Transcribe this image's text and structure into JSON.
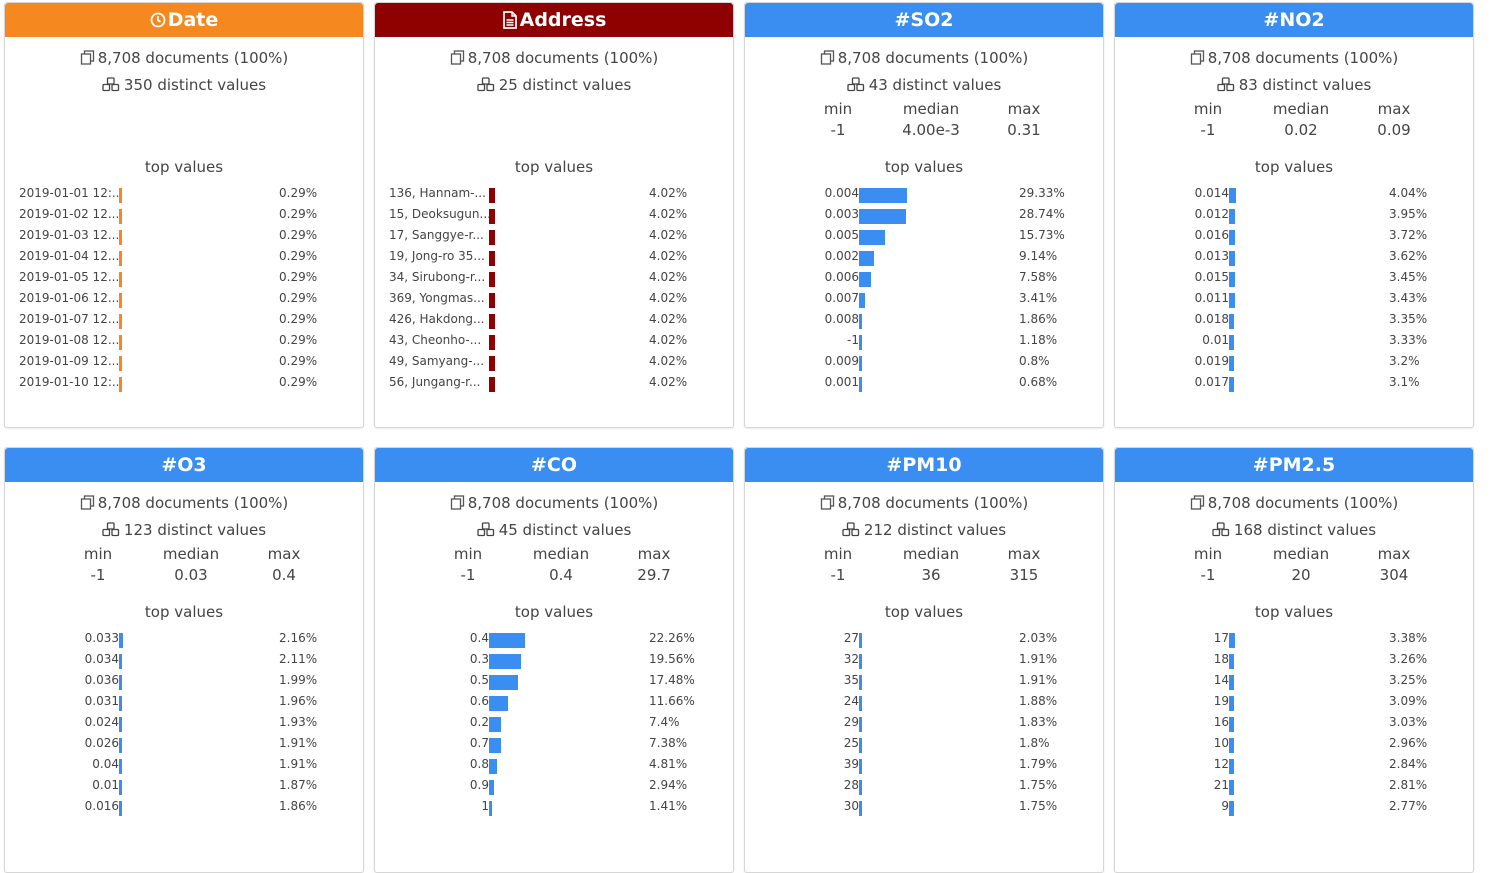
{
  "colors": {
    "date": "#f5891f",
    "address": "#8f0000",
    "numeric": "#3a8ef2"
  },
  "cards": [
    {
      "title": "Date",
      "icon": "clock-icon",
      "kind": "date",
      "documents": "8,708 documents (100%)",
      "distinct": "350 distinct values",
      "top_values_label": "top values",
      "top_values": [
        {
          "name": "2019-01-01 12:...",
          "pct": "0.29%",
          "frac": 0.29
        },
        {
          "name": "2019-01-02 12...",
          "pct": "0.29%",
          "frac": 0.29
        },
        {
          "name": "2019-01-03 12...",
          "pct": "0.29%",
          "frac": 0.29
        },
        {
          "name": "2019-01-04 12...",
          "pct": "0.29%",
          "frac": 0.29
        },
        {
          "name": "2019-01-05 12...",
          "pct": "0.29%",
          "frac": 0.29
        },
        {
          "name": "2019-01-06 12...",
          "pct": "0.29%",
          "frac": 0.29
        },
        {
          "name": "2019-01-07 12...",
          "pct": "0.29%",
          "frac": 0.29
        },
        {
          "name": "2019-01-08 12...",
          "pct": "0.29%",
          "frac": 0.29
        },
        {
          "name": "2019-01-09 12...",
          "pct": "0.29%",
          "frac": 0.29
        },
        {
          "name": "2019-01-10 12:...",
          "pct": "0.29%",
          "frac": 0.29
        }
      ]
    },
    {
      "title": "Address",
      "icon": "document-icon",
      "kind": "address",
      "documents": "8,708 documents (100%)",
      "distinct": "25 distinct values",
      "top_values_label": "top values",
      "top_values": [
        {
          "name": "136, Hannam-...",
          "pct": "4.02%",
          "frac": 4.02
        },
        {
          "name": "15, Deoksugun...",
          "pct": "4.02%",
          "frac": 4.02
        },
        {
          "name": "17, Sanggye-r...",
          "pct": "4.02%",
          "frac": 4.02
        },
        {
          "name": "19, Jong-ro 35...",
          "pct": "4.02%",
          "frac": 4.02
        },
        {
          "name": "34, Sirubong-r...",
          "pct": "4.02%",
          "frac": 4.02
        },
        {
          "name": "369, Yongmas...",
          "pct": "4.02%",
          "frac": 4.02
        },
        {
          "name": "426, Hakdong...",
          "pct": "4.02%",
          "frac": 4.02
        },
        {
          "name": "43, Cheonho-...",
          "pct": "4.02%",
          "frac": 4.02
        },
        {
          "name": "49, Samyang-...",
          "pct": "4.02%",
          "frac": 4.02
        },
        {
          "name": "56, Jungang-r...",
          "pct": "4.02%",
          "frac": 4.02
        }
      ]
    },
    {
      "title": "SO2",
      "icon": "hash-icon",
      "kind": "numeric",
      "documents": "8,708 documents (100%)",
      "distinct": "43 distinct values",
      "min_label": "min",
      "median_label": "median",
      "max_label": "max",
      "min": "-1",
      "median": "4.00e-3",
      "max": "0.31",
      "top_values_label": "top values",
      "top_values": [
        {
          "name": "0.004",
          "pct": "29.33%",
          "frac": 29.33
        },
        {
          "name": "0.003",
          "pct": "28.74%",
          "frac": 28.74
        },
        {
          "name": "0.005",
          "pct": "15.73%",
          "frac": 15.73
        },
        {
          "name": "0.002",
          "pct": "9.14%",
          "frac": 9.14
        },
        {
          "name": "0.006",
          "pct": "7.58%",
          "frac": 7.58
        },
        {
          "name": "0.007",
          "pct": "3.41%",
          "frac": 3.41
        },
        {
          "name": "0.008",
          "pct": "1.86%",
          "frac": 1.86
        },
        {
          "name": "-1",
          "pct": "1.18%",
          "frac": 1.18
        },
        {
          "name": "0.009",
          "pct": "0.8%",
          "frac": 0.8
        },
        {
          "name": "0.001",
          "pct": "0.68%",
          "frac": 0.68
        }
      ]
    },
    {
      "title": "NO2",
      "icon": "hash-icon",
      "kind": "numeric",
      "documents": "8,708 documents (100%)",
      "distinct": "83 distinct values",
      "min_label": "min",
      "median_label": "median",
      "max_label": "max",
      "min": "-1",
      "median": "0.02",
      "max": "0.09",
      "top_values_label": "top values",
      "top_values": [
        {
          "name": "0.014",
          "pct": "4.04%",
          "frac": 4.04
        },
        {
          "name": "0.012",
          "pct": "3.95%",
          "frac": 3.95
        },
        {
          "name": "0.016",
          "pct": "3.72%",
          "frac": 3.72
        },
        {
          "name": "0.013",
          "pct": "3.62%",
          "frac": 3.62
        },
        {
          "name": "0.015",
          "pct": "3.45%",
          "frac": 3.45
        },
        {
          "name": "0.011",
          "pct": "3.43%",
          "frac": 3.43
        },
        {
          "name": "0.018",
          "pct": "3.35%",
          "frac": 3.35
        },
        {
          "name": "0.01",
          "pct": "3.33%",
          "frac": 3.33
        },
        {
          "name": "0.019",
          "pct": "3.2%",
          "frac": 3.2
        },
        {
          "name": "0.017",
          "pct": "3.1%",
          "frac": 3.1
        }
      ]
    },
    {
      "title": "O3",
      "icon": "hash-icon",
      "kind": "numeric",
      "documents": "8,708 documents (100%)",
      "distinct": "123 distinct values",
      "min_label": "min",
      "median_label": "median",
      "max_label": "max",
      "min": "-1",
      "median": "0.03",
      "max": "0.4",
      "top_values_label": "top values",
      "top_values": [
        {
          "name": "0.033",
          "pct": "2.16%",
          "frac": 2.16
        },
        {
          "name": "0.034",
          "pct": "2.11%",
          "frac": 2.11
        },
        {
          "name": "0.036",
          "pct": "1.99%",
          "frac": 1.99
        },
        {
          "name": "0.031",
          "pct": "1.96%",
          "frac": 1.96
        },
        {
          "name": "0.024",
          "pct": "1.93%",
          "frac": 1.93
        },
        {
          "name": "0.026",
          "pct": "1.91%",
          "frac": 1.91
        },
        {
          "name": "0.04",
          "pct": "1.91%",
          "frac": 1.91
        },
        {
          "name": "0.01",
          "pct": "1.87%",
          "frac": 1.87
        },
        {
          "name": "0.016",
          "pct": "1.86%",
          "frac": 1.86
        }
      ]
    },
    {
      "title": "CO",
      "icon": "hash-icon",
      "kind": "numeric",
      "documents": "8,708 documents (100%)",
      "distinct": "45 distinct values",
      "min_label": "min",
      "median_label": "median",
      "max_label": "max",
      "min": "-1",
      "median": "0.4",
      "max": "29.7",
      "top_values_label": "top values",
      "top_values": [
        {
          "name": "0.4",
          "pct": "22.26%",
          "frac": 22.26
        },
        {
          "name": "0.3",
          "pct": "19.56%",
          "frac": 19.56
        },
        {
          "name": "0.5",
          "pct": "17.48%",
          "frac": 17.48
        },
        {
          "name": "0.6",
          "pct": "11.66%",
          "frac": 11.66
        },
        {
          "name": "0.2",
          "pct": "7.4%",
          "frac": 7.4
        },
        {
          "name": "0.7",
          "pct": "7.38%",
          "frac": 7.38
        },
        {
          "name": "0.8",
          "pct": "4.81%",
          "frac": 4.81
        },
        {
          "name": "0.9",
          "pct": "2.94%",
          "frac": 2.94
        },
        {
          "name": "1",
          "pct": "1.41%",
          "frac": 1.41
        }
      ]
    },
    {
      "title": "PM10",
      "icon": "hash-icon",
      "kind": "numeric",
      "documents": "8,708 documents (100%)",
      "distinct": "212 distinct values",
      "min_label": "min",
      "median_label": "median",
      "max_label": "max",
      "min": "-1",
      "median": "36",
      "max": "315",
      "top_values_label": "top values",
      "top_values": [
        {
          "name": "27",
          "pct": "2.03%",
          "frac": 2.03
        },
        {
          "name": "32",
          "pct": "1.91%",
          "frac": 1.91
        },
        {
          "name": "35",
          "pct": "1.91%",
          "frac": 1.91
        },
        {
          "name": "24",
          "pct": "1.88%",
          "frac": 1.88
        },
        {
          "name": "29",
          "pct": "1.83%",
          "frac": 1.83
        },
        {
          "name": "25",
          "pct": "1.8%",
          "frac": 1.8
        },
        {
          "name": "39",
          "pct": "1.79%",
          "frac": 1.79
        },
        {
          "name": "28",
          "pct": "1.75%",
          "frac": 1.75
        },
        {
          "name": "30",
          "pct": "1.75%",
          "frac": 1.75
        }
      ]
    },
    {
      "title": "PM2.5",
      "icon": "hash-icon",
      "kind": "numeric",
      "documents": "8,708 documents (100%)",
      "distinct": "168 distinct values",
      "min_label": "min",
      "median_label": "median",
      "max_label": "max",
      "min": "-1",
      "median": "20",
      "max": "304",
      "top_values_label": "top values",
      "top_values": [
        {
          "name": "17",
          "pct": "3.38%",
          "frac": 3.38
        },
        {
          "name": "18",
          "pct": "3.26%",
          "frac": 3.26
        },
        {
          "name": "14",
          "pct": "3.25%",
          "frac": 3.25
        },
        {
          "name": "19",
          "pct": "3.09%",
          "frac": 3.09
        },
        {
          "name": "16",
          "pct": "3.03%",
          "frac": 3.03
        },
        {
          "name": "10",
          "pct": "2.96%",
          "frac": 2.96
        },
        {
          "name": "12",
          "pct": "2.84%",
          "frac": 2.84
        },
        {
          "name": "21",
          "pct": "2.81%",
          "frac": 2.81
        },
        {
          "name": "9",
          "pct": "2.77%",
          "frac": 2.77
        }
      ]
    }
  ]
}
